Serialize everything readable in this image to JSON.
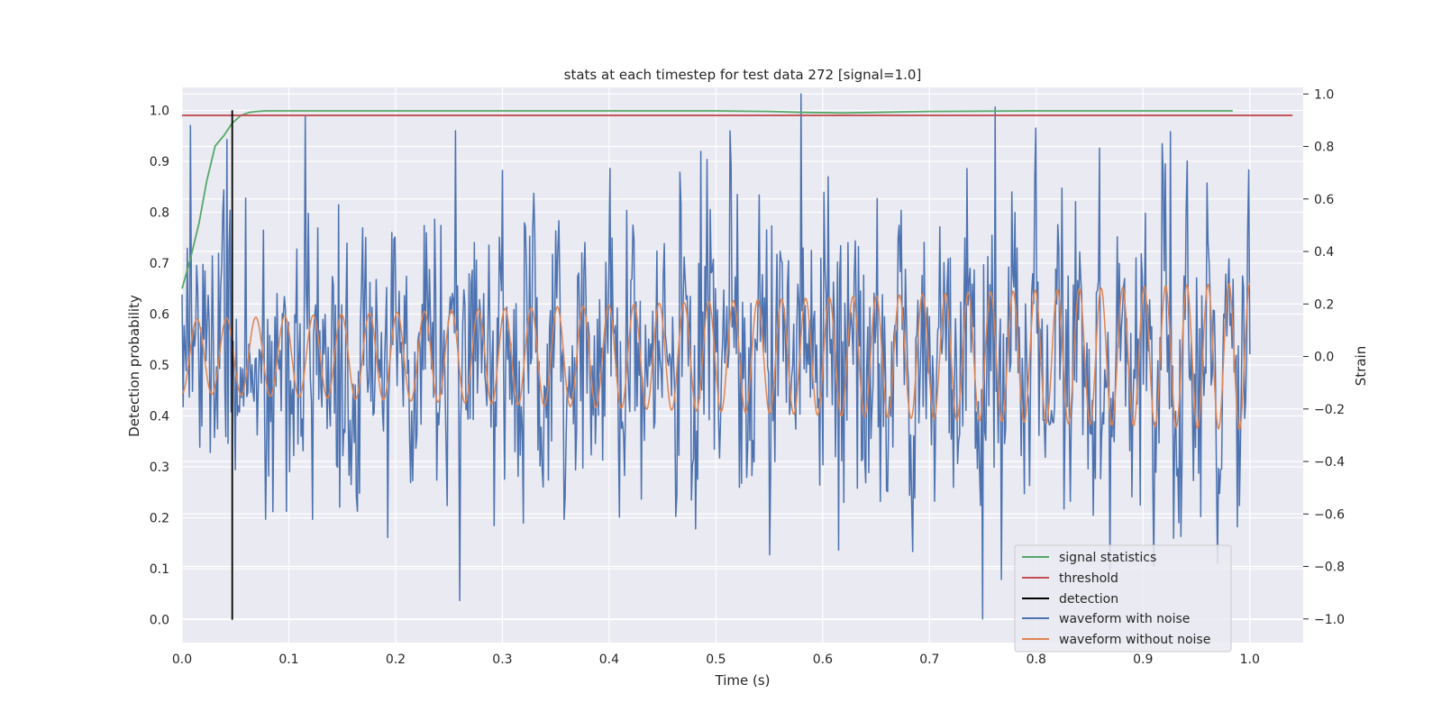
{
  "chart_data": {
    "type": "line",
    "title": "stats at each timestep for test data 272 [signal=1.0]",
    "xlabel": "Time (s)",
    "ylabel": "Detection probability",
    "y2label": "Strain",
    "xlim": [
      0.0,
      1.05
    ],
    "ylim": [
      -0.045,
      1.045
    ],
    "y2lim": [
      -1.09,
      1.025
    ],
    "x_ticks": [
      "0.0",
      "0.1",
      "0.2",
      "0.3",
      "0.4",
      "0.5",
      "0.6",
      "0.7",
      "0.8",
      "0.9",
      "1.0"
    ],
    "y_ticks": [
      "0.0",
      "0.1",
      "0.2",
      "0.3",
      "0.4",
      "0.5",
      "0.6",
      "0.7",
      "0.8",
      "0.9",
      "1.0"
    ],
    "y2_ticks": [
      "−1.0",
      "−0.8",
      "−0.6",
      "−0.4",
      "−0.2",
      "0.0",
      "0.2",
      "0.4",
      "0.6",
      "0.8",
      "1.0"
    ],
    "grid": true,
    "background": "#eaeaf2",
    "legend_position": "lower-right",
    "legend": [
      "signal statistics",
      "threshold",
      "detection",
      "waveform with noise",
      "waveform without noise"
    ],
    "colors": {
      "signal_statistics": "#55a868",
      "threshold": "#c44e52",
      "detection": "#000000",
      "waveform_with_noise": "#4c72b0",
      "waveform_without_noise": "#dd8452"
    },
    "series": [
      {
        "name": "signal statistics",
        "axis": "left",
        "x": [
          0.0,
          0.008,
          0.016,
          0.023,
          0.031,
          0.039,
          0.047,
          0.055,
          0.063,
          0.07,
          0.078,
          0.1,
          0.2,
          0.3,
          0.4,
          0.5,
          0.55,
          0.58,
          0.62,
          0.65,
          0.7,
          0.8,
          0.9,
          0.984
        ],
        "y": [
          0.65,
          0.71,
          0.78,
          0.86,
          0.93,
          0.95,
          0.975,
          0.99,
          0.996,
          0.998,
          0.999,
          0.999,
          0.999,
          0.999,
          0.999,
          0.999,
          0.998,
          0.996,
          0.995,
          0.996,
          0.998,
          0.999,
          0.999,
          0.999
        ]
      },
      {
        "name": "threshold",
        "axis": "left",
        "x": [
          0.0,
          1.04
        ],
        "y": [
          0.99,
          0.99
        ]
      },
      {
        "name": "detection",
        "axis": "left",
        "x": [
          0.047,
          0.047
        ],
        "y": [
          0.0,
          1.0
        ]
      },
      {
        "name": "waveform with noise",
        "axis": "right",
        "x_start": 0.0,
        "x_end": 1.0,
        "sample_count": 1024,
        "peaks": [
          {
            "x": 0.008,
            "y": 0.88
          },
          {
            "x": 0.256,
            "y": 0.86
          },
          {
            "x": 0.26,
            "y": -0.93
          },
          {
            "x": 0.58,
            "y": 1.0
          },
          {
            "x": 0.75,
            "y": -1.0
          },
          {
            "x": 0.8,
            "y": 0.87
          },
          {
            "x": 0.91,
            "y": -0.8
          }
        ]
      },
      {
        "name": "waveform without noise",
        "axis": "right",
        "x_start": 0.0,
        "x_end": 1.0,
        "cycles": 43.5,
        "amplitude_start": 0.14,
        "amplitude_end": 0.28
      }
    ]
  }
}
